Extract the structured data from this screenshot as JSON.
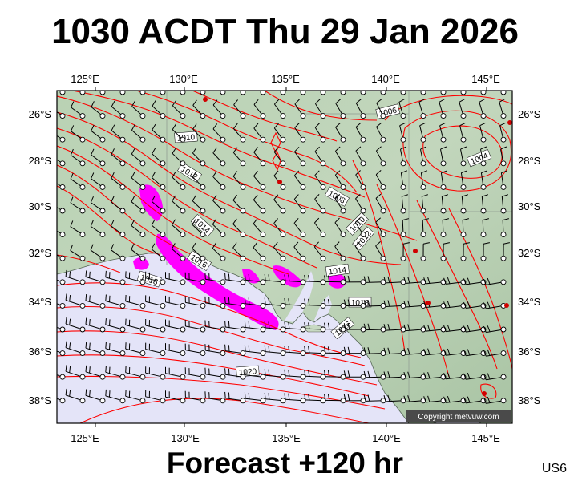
{
  "title": "1030 ACDT Thu 29 Jan 2026",
  "subtitle": "Forecast +120 hr",
  "region_code": "US6",
  "copyright": "Copyright metvuw.com",
  "lon_labels": [
    "125°E",
    "130°E",
    "135°E",
    "140°E",
    "145°E"
  ],
  "lat_labels": [
    "26°S",
    "28°S",
    "30°S",
    "32°S",
    "34°S",
    "36°S",
    "38°S"
  ],
  "isobar_labels": [
    "1006",
    "1004",
    "1010",
    "1012",
    "1014",
    "1008",
    "1010",
    "1012",
    "1014",
    "1016",
    "1018",
    "1018",
    "1020",
    "1016"
  ],
  "colors": {
    "land": "#b7cfb0",
    "sea": "#e4e4f8",
    "isobar": "#ff0000",
    "rain": "#ff00ff",
    "wind": "#000000"
  },
  "icons": [
    "wind-barb-icon",
    "station-circle-icon",
    "rain-area-icon"
  ]
}
